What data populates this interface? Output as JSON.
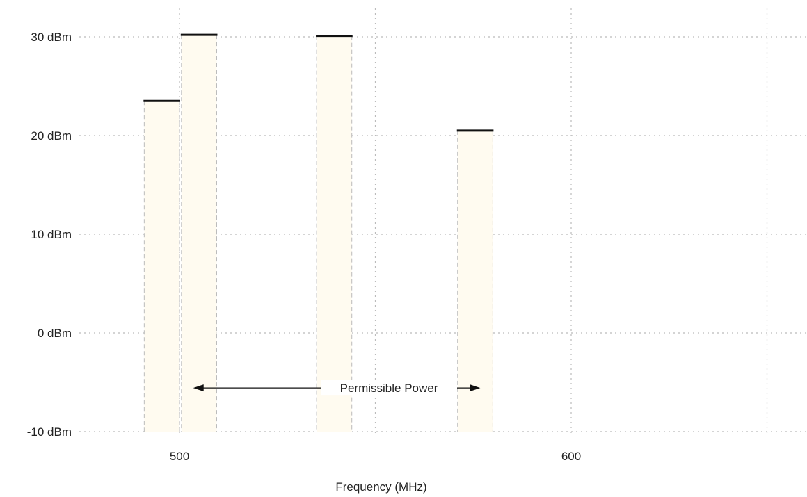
{
  "chart_data": {
    "type": "bar",
    "xlabel": "Frequency (MHz)",
    "ylabel": "",
    "xlim": [
      453.5,
      666
    ],
    "ylim": [
      -10,
      32.5
    ],
    "x_ticks": [
      500,
      600
    ],
    "x_tick_labels": [
      "500",
      "600"
    ],
    "x_grid": [
      450,
      550,
      650
    ],
    "y_ticks": [
      30,
      20,
      10,
      0,
      -10
    ],
    "y_tick_labels": [
      "30 dBm",
      "20 dBm",
      "10 dBm",
      "0 dBm",
      "-10 dBm"
    ],
    "grid": true,
    "bars": [
      {
        "x_start": 491,
        "x_end": 500,
        "value": 23.5
      },
      {
        "x_start": 500.5,
        "x_end": 509.5,
        "value": 30.2
      },
      {
        "x_start": 535,
        "x_end": 544,
        "value": 30.1
      },
      {
        "x_start": 571,
        "x_end": 580,
        "value": 20.5
      }
    ],
    "colors": {
      "bar_fill": "#fffbf0",
      "bar_edge": "#bbbbbb",
      "level_line": "#111111",
      "grid": "#bbbbbb",
      "text": "#222222"
    },
    "annotation": {
      "text": "Permissible Power",
      "x_from": 503.5,
      "x_to": 580,
      "y": -5.5
    }
  }
}
